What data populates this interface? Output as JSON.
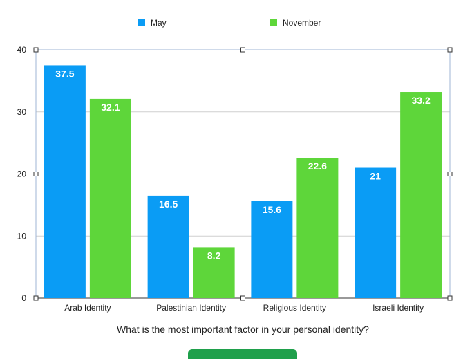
{
  "chart_data": {
    "type": "bar",
    "categories": [
      "Arab Identity",
      "Palestinian Identity",
      "Religious Identity",
      "Israeli Identity"
    ],
    "series": [
      {
        "name": "May",
        "values": [
          37.5,
          16.5,
          15.6,
          21
        ],
        "color": "#0a9cf5"
      },
      {
        "name": "November",
        "values": [
          32.1,
          8.2,
          22.6,
          33.2
        ],
        "color": "#5ed63a"
      }
    ],
    "xlabel": "What is the most important factor in your personal identity?",
    "ylabel": "",
    "ylim": [
      0,
      40
    ],
    "yticks": [
      0,
      10,
      20,
      30,
      40
    ],
    "grid": true,
    "legend": "top-center",
    "data_labels": true
  }
}
